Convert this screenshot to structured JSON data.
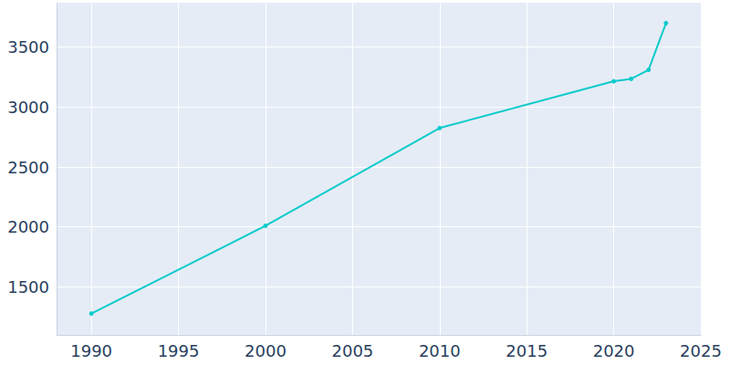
{
  "chart_data": {
    "type": "line",
    "x": [
      1990,
      2000,
      2010,
      2020,
      2021,
      2022,
      2023
    ],
    "values": [
      1278,
      2010,
      2825,
      3215,
      3235,
      3310,
      3700
    ],
    "color": "#0ccbcb",
    "marker": "circle",
    "xlim": [
      1988,
      2025
    ],
    "xticks": [
      1990,
      1995,
      2000,
      2005,
      2010,
      2015,
      2020,
      2025
    ],
    "ylim": [
      1100,
      3870
    ],
    "yticks": [
      1500,
      2000,
      2500,
      3000,
      3500
    ],
    "grid": true
  }
}
